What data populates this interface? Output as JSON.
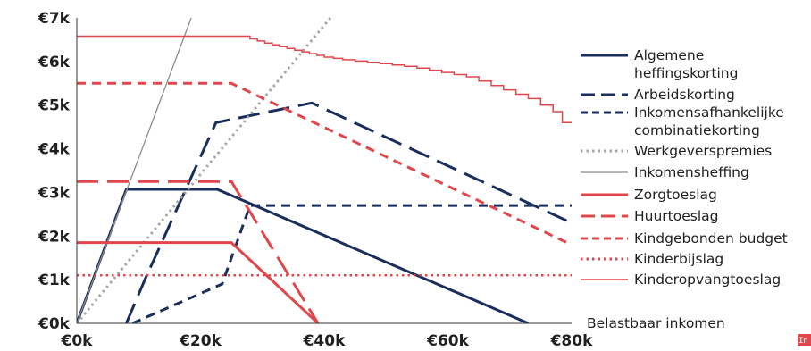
{
  "chart_data": {
    "type": "line",
    "title": "",
    "xlabel": "Belastbaar inkomen",
    "ylabel": "",
    "xlim": [
      0,
      80000
    ],
    "ylim": [
      0,
      7000
    ],
    "x_ticks": [
      {
        "value": 0,
        "label": "€0k"
      },
      {
        "value": 20000,
        "label": "€20k"
      },
      {
        "value": 40000,
        "label": "€40k"
      },
      {
        "value": 60000,
        "label": "€60k"
      },
      {
        "value": 80000,
        "label": "€80k"
      }
    ],
    "y_ticks": [
      {
        "value": 0,
        "label": "€0k"
      },
      {
        "value": 1000,
        "label": "€1k"
      },
      {
        "value": 2000,
        "label": "€2k"
      },
      {
        "value": 3000,
        "label": "€3k"
      },
      {
        "value": 4000,
        "label": "€4k"
      },
      {
        "value": 5000,
        "label": "€5k"
      },
      {
        "value": 6000,
        "label": "€6k"
      },
      {
        "value": 7000,
        "label": "€7k"
      }
    ],
    "grid": false,
    "legend_position": "right",
    "series": [
      {
        "name": "Algemene heffingskorting",
        "lines": [
          "Algemene",
          "heffingskorting"
        ],
        "color": "#1a2e5c",
        "style": "solid",
        "width": 3,
        "points": [
          [
            0,
            0
          ],
          [
            8000,
            3070
          ],
          [
            22700,
            3070
          ],
          [
            73000,
            0
          ]
        ]
      },
      {
        "name": "Arbeidskorting",
        "lines": [
          "Arbeidskorting"
        ],
        "color": "#1a2e5c",
        "style": "longdash",
        "width": 3,
        "points": [
          [
            8000,
            0
          ],
          [
            11000,
            1000
          ],
          [
            22500,
            4600
          ],
          [
            38000,
            5050
          ],
          [
            80000,
            2300
          ]
        ]
      },
      {
        "name": "Inkomensafhankelijke combinatiekorting",
        "lines": [
          "Inkomensafhankelijke",
          "combinatiekorting"
        ],
        "color": "#1a2e5c",
        "style": "dash",
        "width": 3,
        "points": [
          [
            9000,
            0
          ],
          [
            23500,
            900
          ],
          [
            28000,
            2700
          ],
          [
            80000,
            2700
          ]
        ]
      },
      {
        "name": "Werkgeverspremies",
        "lines": [
          "Werkgeverspremies"
        ],
        "color": "#a6a6a6",
        "style": "dot",
        "width": 3,
        "points": [
          [
            0,
            0
          ],
          [
            41000,
            7000
          ]
        ]
      },
      {
        "name": "Inkomensheffing",
        "lines": [
          "Inkomensheffing"
        ],
        "color": "#8c8c8c",
        "style": "solid",
        "width": 1.3,
        "points": [
          [
            0,
            0
          ],
          [
            18500,
            7000
          ]
        ]
      },
      {
        "name": "Zorgtoeslag",
        "lines": [
          "Zorgtoeslag"
        ],
        "color": "#e0464a",
        "style": "solid",
        "width": 3,
        "points": [
          [
            0,
            1850
          ],
          [
            25000,
            1850
          ],
          [
            39000,
            0
          ]
        ]
      },
      {
        "name": "Huurtoeslag",
        "lines": [
          "Huurtoeslag"
        ],
        "color": "#e0464a",
        "style": "longdash",
        "width": 3,
        "points": [
          [
            0,
            3250
          ],
          [
            25000,
            3250
          ],
          [
            39000,
            0
          ]
        ]
      },
      {
        "name": "Kindgebonden budget",
        "lines": [
          "Kindgebonden budget"
        ],
        "color": "#e0464a",
        "style": "dash",
        "width": 3,
        "points": [
          [
            0,
            5500
          ],
          [
            25000,
            5500
          ],
          [
            80000,
            1800
          ]
        ]
      },
      {
        "name": "Kinderbijslag",
        "lines": [
          "Kinderbijslag"
        ],
        "color": "#e0464a",
        "style": "dot",
        "width": 2.5,
        "points": [
          [
            0,
            1100
          ],
          [
            80000,
            1100
          ]
        ]
      },
      {
        "name": "Kinderopvangtoeslag",
        "lines": [
          "Kinderopvangtoeslag"
        ],
        "color": "#e0464a",
        "style": "step",
        "width": 1.5,
        "points": [
          [
            0,
            6580
          ],
          [
            26500,
            6580
          ],
          [
            28000,
            6520
          ],
          [
            29200,
            6470
          ],
          [
            30400,
            6420
          ],
          [
            31600,
            6380
          ],
          [
            32800,
            6340
          ],
          [
            34000,
            6300
          ],
          [
            35200,
            6260
          ],
          [
            36400,
            6220
          ],
          [
            37600,
            6180
          ],
          [
            38800,
            6140
          ],
          [
            40000,
            6100
          ],
          [
            41500,
            6070
          ],
          [
            43000,
            6040
          ],
          [
            45000,
            6010
          ],
          [
            47000,
            5980
          ],
          [
            49000,
            5950
          ],
          [
            51000,
            5920
          ],
          [
            53000,
            5890
          ],
          [
            55000,
            5850
          ],
          [
            57000,
            5800
          ],
          [
            59000,
            5750
          ],
          [
            61000,
            5700
          ],
          [
            63000,
            5650
          ],
          [
            65000,
            5550
          ],
          [
            67000,
            5450
          ],
          [
            69000,
            5350
          ],
          [
            71000,
            5250
          ],
          [
            73000,
            5150
          ],
          [
            75000,
            5000
          ],
          [
            77000,
            4850
          ],
          [
            78500,
            4600
          ],
          [
            80000,
            4600
          ]
        ]
      }
    ]
  },
  "badge": {
    "text": "In",
    "color": "#e0464a"
  }
}
